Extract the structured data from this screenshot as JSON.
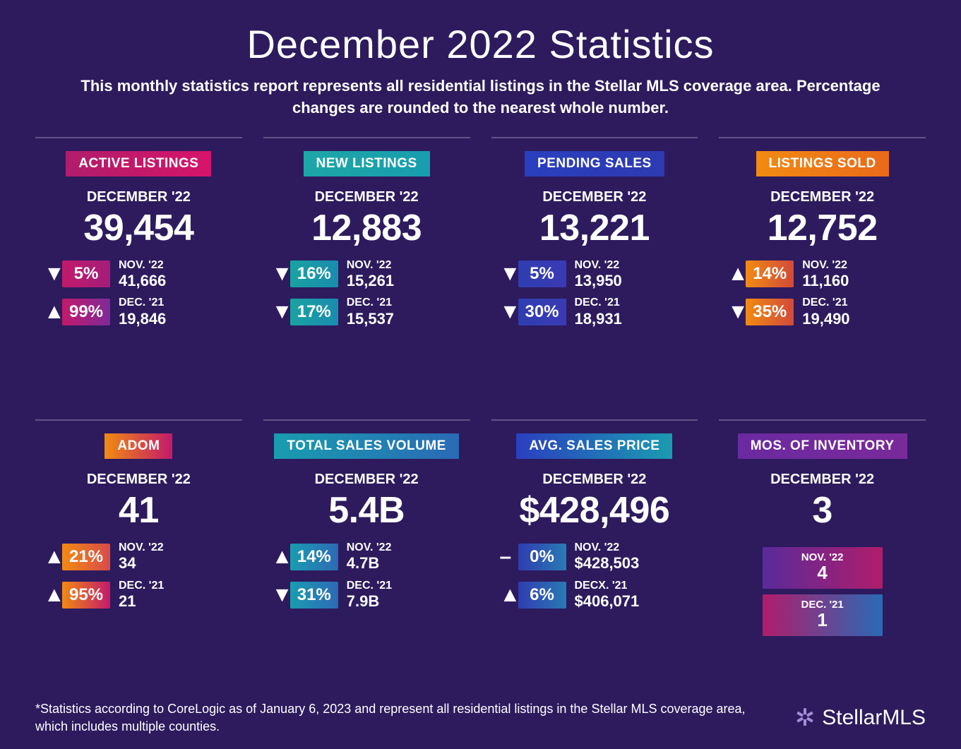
{
  "colors": {
    "background": "#2d1b5e",
    "text": "#ffffff",
    "divider": "rgba(255,255,255,0.25)"
  },
  "header": {
    "title": "December 2022 Statistics",
    "subtitle": "This monthly statistics report represents all residential listings in the Stellar MLS coverage area. Percentage changes are rounded to the nearest whole number."
  },
  "cards": [
    {
      "label": "ACTIVE LISTINGS",
      "label_gradient": "linear-gradient(90deg,#b01d6b,#d6146a)",
      "period": "DECEMBER '22",
      "value": "39,454",
      "comparisons": [
        {
          "direction": "down",
          "pct": "5%",
          "badge_gradient": "linear-gradient(90deg,#c21a6b,#a31d7a)",
          "period": "NOV. '22",
          "value": "41,666"
        },
        {
          "direction": "up",
          "pct": "99%",
          "badge_gradient": "linear-gradient(90deg,#c21a6b,#7f2a99)",
          "period": "DEC. '21",
          "value": "19,846"
        }
      ]
    },
    {
      "label": "NEW LISTINGS",
      "label_gradient": "linear-gradient(90deg,#1da7a7,#189dae)",
      "period": "DECEMBER '22",
      "value": "12,883",
      "comparisons": [
        {
          "direction": "down",
          "pct": "16%",
          "badge_gradient": "linear-gradient(90deg,#1aa2a2,#1a8caf)",
          "period": "NOV. '22",
          "value": "15,261"
        },
        {
          "direction": "down",
          "pct": "17%",
          "badge_gradient": "linear-gradient(90deg,#1aa2a2,#1a8caf)",
          "period": "DEC. '21",
          "value": "15,537"
        }
      ]
    },
    {
      "label": "PENDING SALES",
      "label_gradient": "linear-gradient(90deg,#2a3fbf,#2e3ab0)",
      "period": "DECEMBER '22",
      "value": "13,221",
      "comparisons": [
        {
          "direction": "down",
          "pct": "5%",
          "badge_gradient": "linear-gradient(90deg,#2f3db0,#3a3ab5)",
          "period": "NOV. '22",
          "value": "13,950"
        },
        {
          "direction": "down",
          "pct": "30%",
          "badge_gradient": "linear-gradient(90deg,#2f3db0,#3a3ab5)",
          "period": "DEC. '21",
          "value": "18,931"
        }
      ]
    },
    {
      "label": "LISTINGS SOLD",
      "label_gradient": "linear-gradient(90deg,#f28a12,#e96a1a)",
      "period": "DECEMBER '22",
      "value": "12,752",
      "comparisons": [
        {
          "direction": "up",
          "pct": "14%",
          "badge_gradient": "linear-gradient(90deg,#f28a12,#d14a3a)",
          "period": "NOV. '22",
          "value": "11,160"
        },
        {
          "direction": "down",
          "pct": "35%",
          "badge_gradient": "linear-gradient(90deg,#f28a12,#d14a3a)",
          "period": "DEC. '21",
          "value": "19,490"
        }
      ]
    },
    {
      "label": "ADOM",
      "label_gradient": "linear-gradient(90deg,#f28a12,#c21a6b)",
      "period": "DECEMBER '22",
      "value": "41",
      "comparisons": [
        {
          "direction": "up",
          "pct": "21%",
          "badge_gradient": "linear-gradient(90deg,#f28a12,#d84a4a)",
          "period": "NOV. '22",
          "value": "34"
        },
        {
          "direction": "up",
          "pct": "95%",
          "badge_gradient": "linear-gradient(90deg,#f28a12,#c21a6b)",
          "period": "DEC. '21",
          "value": "21"
        }
      ]
    },
    {
      "label": "TOTAL SALES VOLUME",
      "label_gradient": "linear-gradient(90deg,#189dae,#2a6ab5)",
      "period": "DECEMBER '22",
      "value": "5.4B",
      "comparisons": [
        {
          "direction": "up",
          "pct": "14%",
          "badge_gradient": "linear-gradient(90deg,#1a9cb0,#2d6ab5)",
          "period": "NOV. '22",
          "value": "4.7B"
        },
        {
          "direction": "down",
          "pct": "31%",
          "badge_gradient": "linear-gradient(90deg,#1a9cb0,#2d6ab5)",
          "period": "DEC. '21",
          "value": "7.9B"
        }
      ]
    },
    {
      "label": "AVG. SALES PRICE",
      "label_gradient": "linear-gradient(90deg,#2a3fbf,#1a9cb0)",
      "period": "DECEMBER '22",
      "value": "$428,496",
      "comparisons": [
        {
          "direction": "flat",
          "pct": "0%",
          "badge_gradient": "linear-gradient(90deg,#2f3db0,#2a7ab5)",
          "period": "NOV. '22",
          "value": "$428,503"
        },
        {
          "direction": "up",
          "pct": "6%",
          "badge_gradient": "linear-gradient(90deg,#2f3db0,#2a7ab5)",
          "period": "DECX. '21",
          "value": "$406,071"
        }
      ]
    },
    {
      "label": "MOS. OF INVENTORY",
      "label_gradient": "linear-gradient(90deg,#6a2aa0,#7a2a9a)",
      "period": "DECEMBER '22",
      "value": "3",
      "inventory": [
        {
          "period": "NOV. '22",
          "value": "4",
          "gradient": "linear-gradient(90deg,#5a2a9a,#b01d6b)"
        },
        {
          "period": "DEC. '21",
          "value": "1",
          "gradient": "linear-gradient(90deg,#b01d6b,#2a6ab5)"
        }
      ]
    }
  ],
  "footer": {
    "note": "*Statistics according to CoreLogic as of January 6, 2023 and represent all residential listings in the Stellar MLS coverage area, which includes multiple counties.",
    "brand": "StellarMLS"
  },
  "glyphs": {
    "up": "▲",
    "down": "▼",
    "flat": "–"
  }
}
